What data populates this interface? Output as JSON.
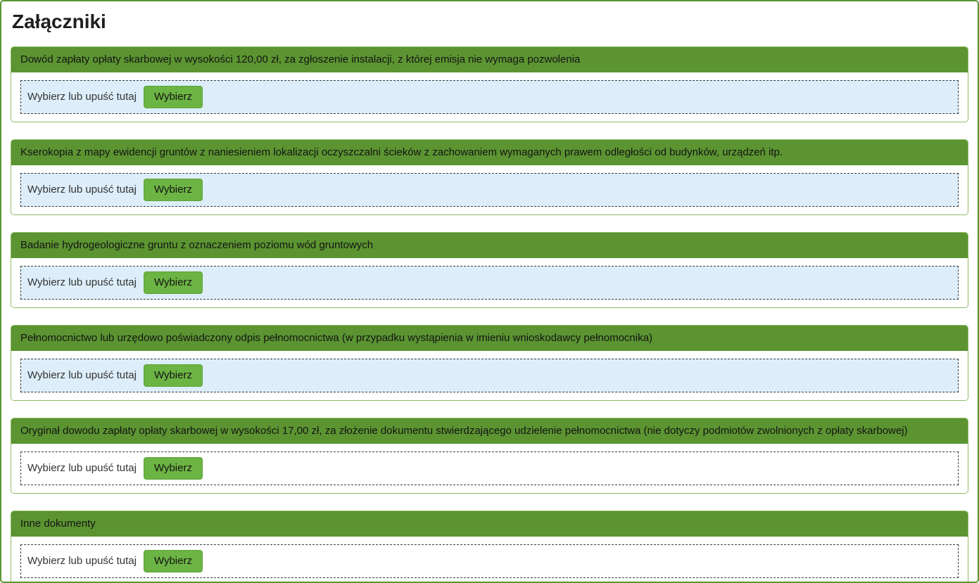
{
  "page": {
    "title": "Załączniki"
  },
  "colors": {
    "page_border": "#5b9431",
    "header_green": "#5b9431",
    "card_border": "#8fba66",
    "button_green": "#6cb443",
    "dropzone_highlight_blue": "#ddeefa",
    "dropzone_dash_border": "#3c3c3c"
  },
  "dropzone": {
    "label": "Wybierz lub upuść tutaj",
    "button_label": "Wybierz"
  },
  "attachments": [
    {
      "title": "Dowód zapłaty opłaty skarbowej w wysokości 120,00 zł, za zgłoszenie instalacji, z której emisja nie wymaga pozwolenia",
      "highlighted": true
    },
    {
      "title": "Kserokopia z mapy ewidencji gruntów z naniesieniem lokalizacji oczyszczalni ścieków z zachowaniem wymaganych prawem odległości od budynków, urządzeń itp.",
      "highlighted": true
    },
    {
      "title": "Badanie hydrogeologiczne gruntu z oznaczeniem poziomu wód gruntowych",
      "highlighted": true
    },
    {
      "title": "Pełnomocnictwo lub urzędowo poświadczony odpis pełnomocnictwa (w przypadku wystąpienia w imieniu wnioskodawcy pełnomocnika)",
      "highlighted": true
    },
    {
      "title": "Oryginał dowodu zapłaty opłaty skarbowej w wysokości 17,00 zł, za złożenie dokumentu stwierdzającego udzielenie pełnomocnictwa (nie dotyczy podmiotów zwolnionych z opłaty skarbowej)",
      "highlighted": false
    },
    {
      "title": "Inne dokumenty",
      "highlighted": false
    }
  ]
}
